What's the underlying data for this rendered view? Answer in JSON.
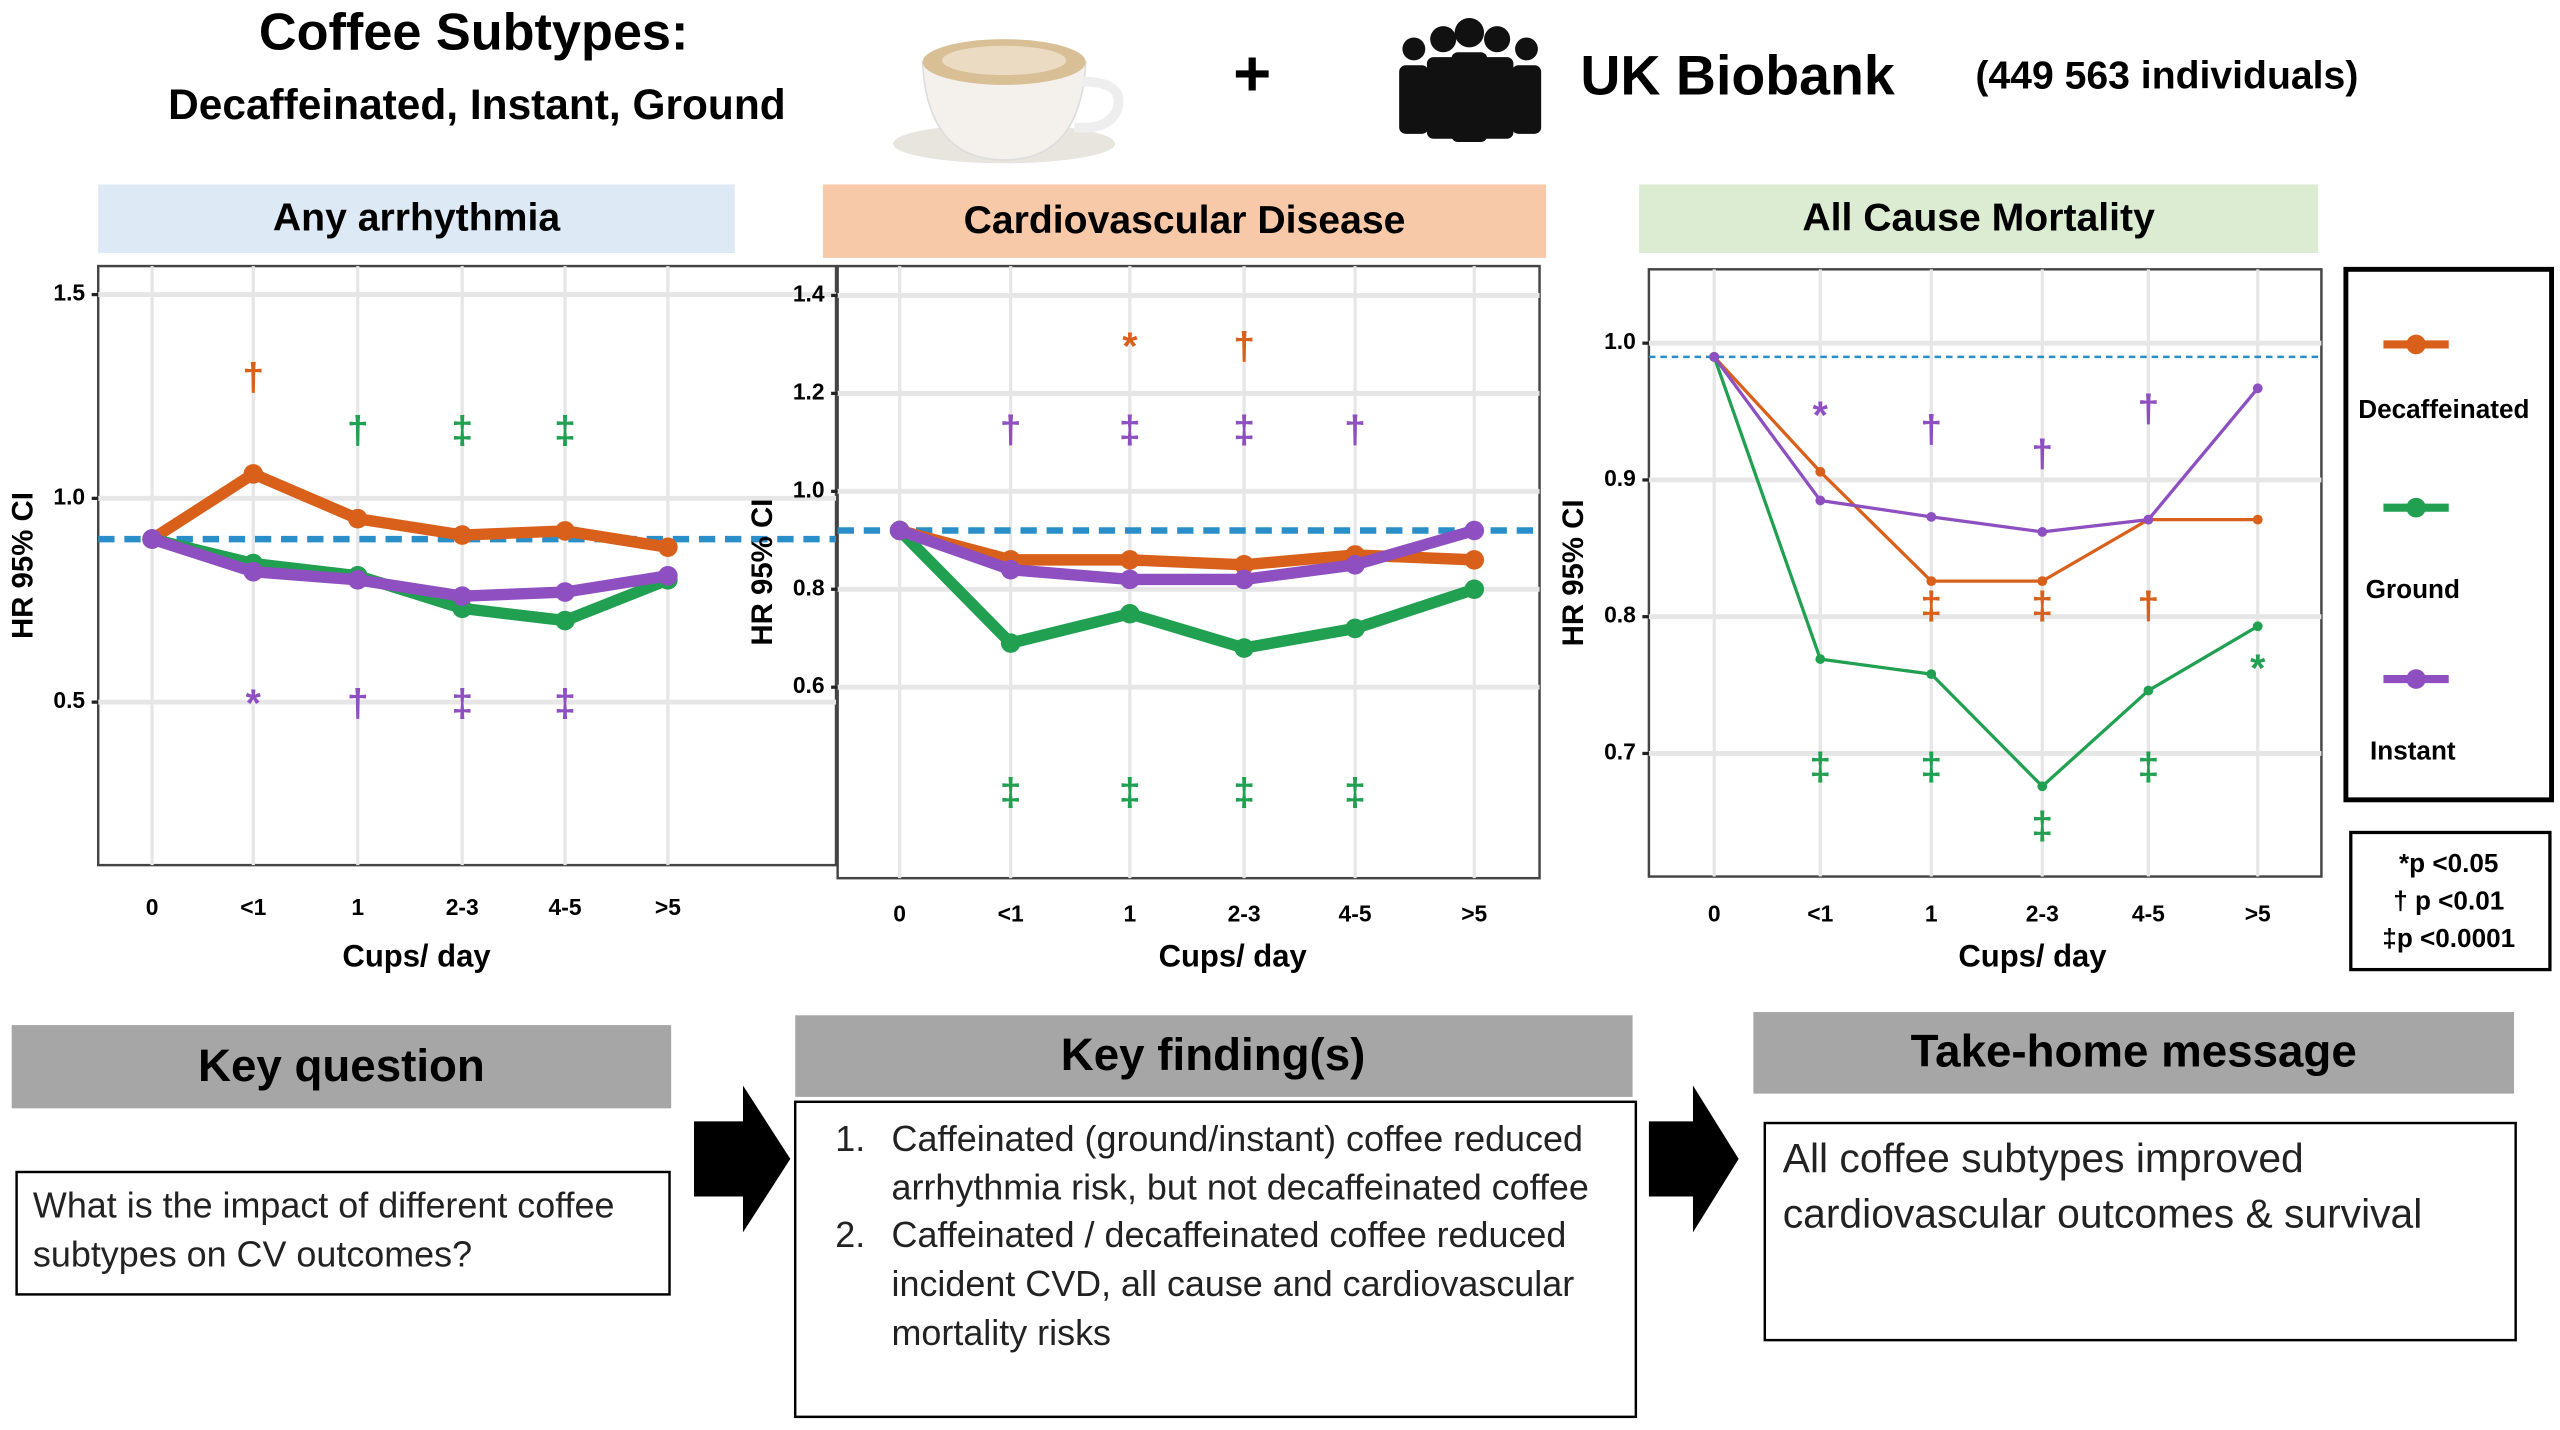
{
  "header": {
    "title": "Coffee Subtypes:",
    "subtitle": "Decaffeinated, Instant, Ground",
    "plus": "+",
    "cohort": "UK Biobank",
    "cohort_size": "(449 563 individuals)"
  },
  "chart_data": [
    {
      "type": "line",
      "title": "Any arrhythmia",
      "x_label": "Cups/ day",
      "y_label": "HR 95% CI",
      "categories": [
        "0",
        "<1",
        "1",
        "2-3",
        "4-5",
        ">5"
      ],
      "ylim": [
        0.1,
        1.57
      ],
      "yticks": [
        0.5,
        {
          "value": 1,
          "label": "1.0"
        },
        1.5
      ],
      "grid": true,
      "reference_line": 0.9,
      "series": [
        {
          "name": "Decaffeinated",
          "color": "#d9601a",
          "values": [
            0.9,
            1.06,
            0.95,
            0.91,
            0.92,
            0.88
          ]
        },
        {
          "name": "Ground",
          "color": "#20a050",
          "values": [
            0.9,
            0.84,
            0.81,
            0.73,
            0.7,
            0.8
          ]
        },
        {
          "name": "Instant",
          "color": "#8e4fc0",
          "values": [
            0.9,
            0.82,
            0.8,
            0.76,
            0.77,
            0.81
          ]
        }
      ],
      "annotations": [
        {
          "text": "†",
          "x": "<1",
          "y": 1.29,
          "color": "#d9601a"
        },
        {
          "text": "†",
          "x": "1",
          "y": 1.16,
          "color": "#20a050"
        },
        {
          "text": "‡",
          "x": "2-3",
          "y": 1.16,
          "color": "#20a050"
        },
        {
          "text": "‡",
          "x": "4-5",
          "y": 1.16,
          "color": "#20a050"
        },
        {
          "text": "*",
          "x": "<1",
          "y": 0.49,
          "color": "#8e4fc0"
        },
        {
          "text": "†",
          "x": "1",
          "y": 0.49,
          "color": "#8e4fc0"
        },
        {
          "text": "‡",
          "x": "2-3",
          "y": 0.49,
          "color": "#8e4fc0"
        },
        {
          "text": "‡",
          "x": "4-5",
          "y": 0.49,
          "color": "#8e4fc0"
        }
      ]
    },
    {
      "type": "line",
      "title": "Cardiovascular Disease",
      "x_label": "Cups/ day",
      "y_label": "HR 95% CI",
      "categories": [
        "0",
        "<1",
        "1",
        "2-3",
        "4-5",
        ">5"
      ],
      "ylim": [
        0.21,
        1.46
      ],
      "yticks": [
        0.6,
        0.8,
        {
          "value": 1,
          "label": "1.0"
        },
        1.2,
        1.4
      ],
      "grid": true,
      "reference_line": 0.92,
      "series": [
        {
          "name": "Decaffeinated",
          "color": "#d9601a",
          "values": [
            0.92,
            0.86,
            0.86,
            0.85,
            0.87,
            0.86
          ]
        },
        {
          "name": "Ground",
          "color": "#20a050",
          "values": [
            0.92,
            0.69,
            0.75,
            0.68,
            0.72,
            0.8
          ]
        },
        {
          "name": "Instant",
          "color": "#8e4fc0",
          "values": [
            0.92,
            0.84,
            0.82,
            0.82,
            0.85,
            0.92
          ]
        }
      ],
      "annotations": [
        {
          "text": "*",
          "x": "1",
          "y": 1.29,
          "color": "#d9601a"
        },
        {
          "text": "†",
          "x": "2-3",
          "y": 1.29,
          "color": "#d9601a"
        },
        {
          "text": "†",
          "x": "<1",
          "y": 1.12,
          "color": "#8e4fc0"
        },
        {
          "text": "‡",
          "x": "1",
          "y": 1.12,
          "color": "#8e4fc0"
        },
        {
          "text": "‡",
          "x": "2-3",
          "y": 1.12,
          "color": "#8e4fc0"
        },
        {
          "text": "†",
          "x": "4-5",
          "y": 1.12,
          "color": "#8e4fc0"
        },
        {
          "text": "‡",
          "x": "<1",
          "y": 0.38,
          "color": "#20a050"
        },
        {
          "text": "‡",
          "x": "1",
          "y": 0.38,
          "color": "#20a050"
        },
        {
          "text": "‡",
          "x": "2-3",
          "y": 0.38,
          "color": "#20a050"
        },
        {
          "text": "‡",
          "x": "4-5",
          "y": 0.38,
          "color": "#20a050"
        }
      ]
    },
    {
      "type": "line",
      "title": "All Cause Mortality",
      "x_label": "Cups/ day",
      "y_label": "HR 95% CI",
      "categories": [
        "0",
        "<1",
        "1",
        "2-3",
        "4-5",
        ">5"
      ],
      "ylim": [
        0.61,
        1.054
      ],
      "yticks": [
        0.7,
        0.8,
        0.9,
        {
          "value": 1,
          "label": "1.0"
        }
      ],
      "grid": true,
      "reference_line": 0.99,
      "series": [
        {
          "name": "Decaffeinated",
          "color": "#d9601a",
          "values": [
            0.99,
            0.906,
            0.826,
            0.826,
            0.871,
            0.871
          ]
        },
        {
          "name": "Ground",
          "color": "#20a050",
          "values": [
            0.99,
            0.769,
            0.758,
            0.676,
            0.746,
            0.793
          ]
        },
        {
          "name": "Instant",
          "color": "#8e4fc0",
          "values": [
            0.99,
            0.885,
            0.873,
            0.862,
            0.871,
            0.967
          ]
        }
      ],
      "annotations": [
        {
          "text": "*",
          "x": "<1",
          "y": 0.945,
          "color": "#8e4fc0"
        },
        {
          "text": "†",
          "x": "1",
          "y": 0.935,
          "color": "#8e4fc0"
        },
        {
          "text": "†",
          "x": "2-3",
          "y": 0.917,
          "color": "#8e4fc0"
        },
        {
          "text": "†",
          "x": "4-5",
          "y": 0.95,
          "color": "#8e4fc0"
        },
        {
          "text": "‡",
          "x": "1",
          "y": 0.806,
          "color": "#d9601a"
        },
        {
          "text": "‡",
          "x": "2-3",
          "y": 0.806,
          "color": "#d9601a"
        },
        {
          "text": "†",
          "x": "4-5",
          "y": 0.806,
          "color": "#d9601a"
        },
        {
          "text": "‡",
          "x": "<1",
          "y": 0.688,
          "color": "#20a050"
        },
        {
          "text": "‡",
          "x": "1",
          "y": 0.688,
          "color": "#20a050"
        },
        {
          "text": "‡",
          "x": "2-3",
          "y": 0.645,
          "color": "#20a050"
        },
        {
          "text": "‡",
          "x": "4-5",
          "y": 0.688,
          "color": "#20a050"
        },
        {
          "text": "*",
          "x": ">5",
          "y": 0.76,
          "color": "#20a050"
        }
      ]
    }
  ],
  "significance_key": [
    "*p <0.05",
    "† p <0.01",
    "‡p <0.0001"
  ],
  "key_question": {
    "title": "Key question",
    "text": "What is the impact of different coffee subtypes on CV outcomes?"
  },
  "key_findings": {
    "title": "Key finding(s)",
    "items": [
      "Caffeinated (ground/instant) coffee reduced arrhythmia risk, but not decaffeinated coffee",
      "Caffeinated / decaffeinated coffee reduced incident CVD, all cause and cardiovascular mortality risks"
    ]
  },
  "take_home": {
    "title": "Take-home message",
    "text": "All coffee subtypes improved cardiovascular outcomes & survival"
  }
}
